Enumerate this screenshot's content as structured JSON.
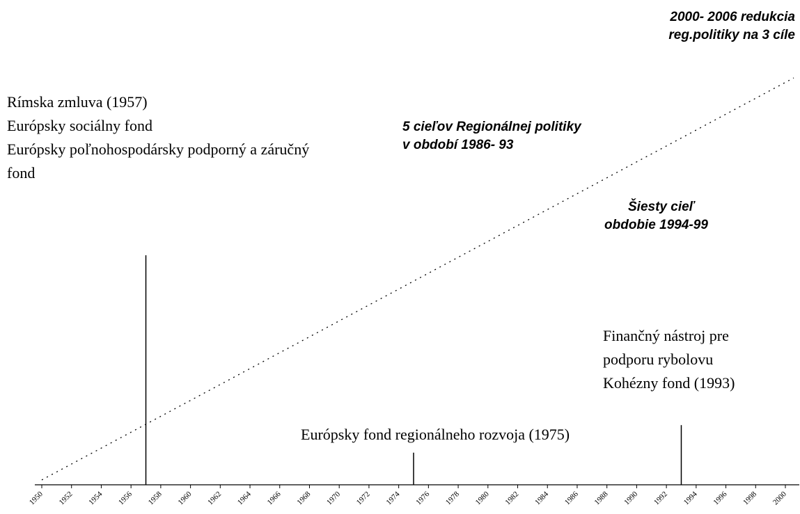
{
  "timeline": {
    "start_year": 1950,
    "end_year": 2000,
    "tick_step": 2,
    "tick_labels": [
      "1950",
      "1952",
      "1954",
      "1956",
      "1958",
      "1960",
      "1962",
      "1964",
      "1966",
      "1968",
      "1970",
      "1972",
      "1974",
      "1976",
      "1978",
      "1980",
      "1982",
      "1984",
      "1986",
      "1988",
      "1990",
      "1992",
      "1994",
      "1996",
      "1998",
      "2000"
    ],
    "markers": [
      {
        "year": 1957,
        "relative_height": 1.0
      },
      {
        "year": 1975,
        "relative_height": 0.14
      },
      {
        "year": 1993,
        "relative_height": 0.26
      }
    ]
  },
  "notes": {
    "rimska": {
      "lines": [
        "Rímska zmluva (1957)",
        "Európsky sociálny fond",
        "Európsky poľnohospodársky podporný a záručný",
        "fond"
      ]
    },
    "efrr": {
      "lines": [
        "Európsky fond regionálneho rozvoja (1975)"
      ]
    },
    "financny": {
      "lines": [
        "Finančný nástroj pre",
        "podporu rybolovu",
        "Kohézny fond (1993)"
      ]
    },
    "ciele5": {
      "lines": [
        "5 cieľov Regionálnej politiky",
        "v období 1986- 93"
      ]
    },
    "siesty": {
      "lines": [
        "Šiesty cieľ",
        "obdobie 1994-99"
      ]
    },
    "redukcia": {
      "lines": [
        "2000- 2006 redukcia",
        "reg.politiky na 3 cíle"
      ]
    }
  }
}
